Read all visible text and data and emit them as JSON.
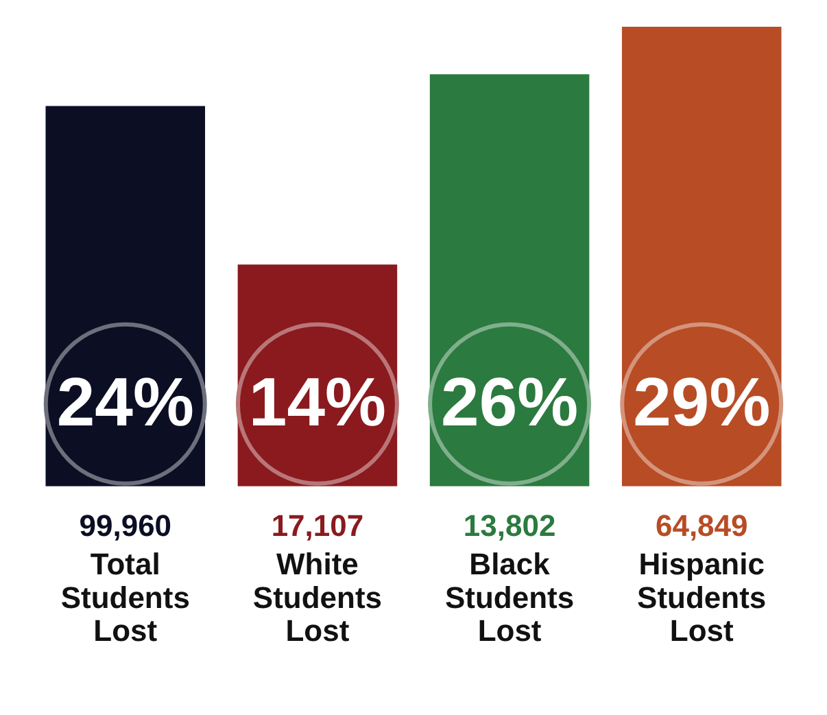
{
  "chart_data": {
    "type": "bar",
    "categories": [
      "Total Students Lost",
      "White Students Lost",
      "Black Students Lost",
      "Hispanic Students Lost"
    ],
    "values": [
      24,
      14,
      26,
      29
    ],
    "colors": [
      "#0c0f24",
      "#8a1a1e",
      "#2b7a3f",
      "#b84c25"
    ],
    "value_labels": [
      "24%",
      "14%",
      "26%",
      "29%"
    ],
    "annotations": [
      "99,960",
      "17,107",
      "13,802",
      "64,849"
    ],
    "grid": false,
    "legend": false,
    "tick_labels": "x"
  }
}
